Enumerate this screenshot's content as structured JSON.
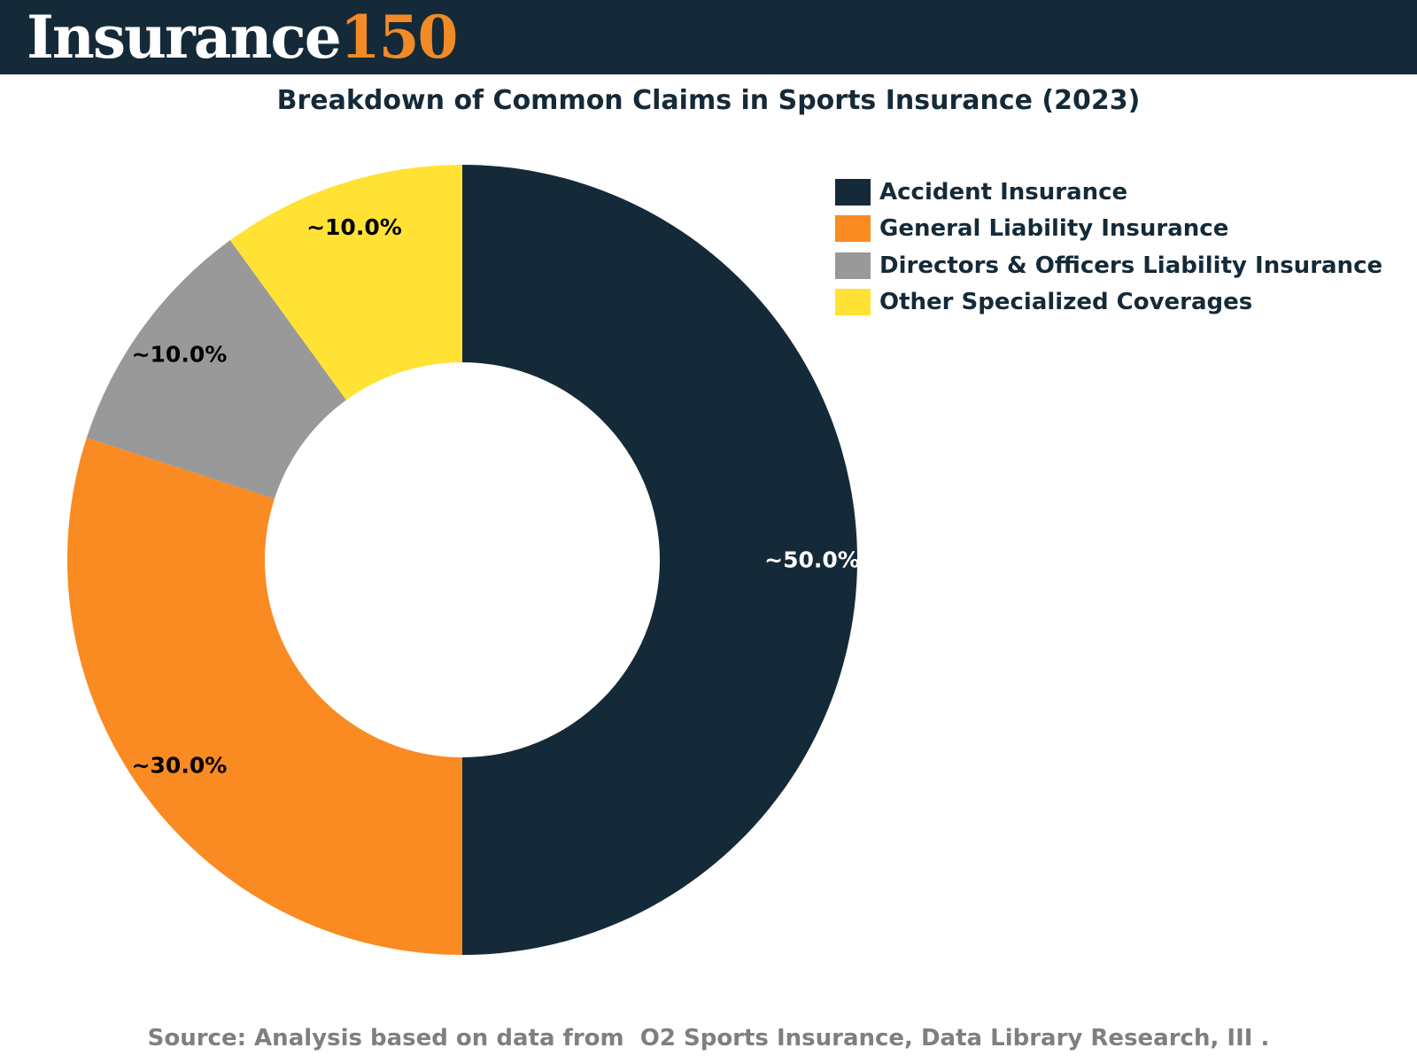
{
  "header": {
    "brand_word": "Insurance",
    "brand_number": "150",
    "background_color": "#152a38",
    "word_color": "#ffffff",
    "number_color": "#f28a25"
  },
  "chart_data": {
    "type": "pie",
    "donut": true,
    "title": "Breakdown of Common Claims in Sports Insurance (2023)",
    "series": [
      {
        "name": "Accident Insurance",
        "value": 50.0,
        "label": "~50.0%",
        "color": "#152a38",
        "label_color": "#ffffff"
      },
      {
        "name": "General Liability Insurance",
        "value": 30.0,
        "label": "~30.0%",
        "color": "#fa8a22",
        "label_color": "#000000"
      },
      {
        "name": "Directors & Officers Liability Insurance",
        "value": 10.0,
        "label": "~10.0%",
        "color": "#999999",
        "label_color": "#000000"
      },
      {
        "name": "Other Specialized Coverages",
        "value": 10.0,
        "label": "~10.0%",
        "color": "#ffe233",
        "label_color": "#000000"
      }
    ],
    "legend_position": "top-right",
    "direction": "clockwise",
    "start_angle_deg": 0
  },
  "footer": {
    "source": "Source: Analysis based on data from  O2 Sports Insurance, Data Library Research, III ."
  }
}
